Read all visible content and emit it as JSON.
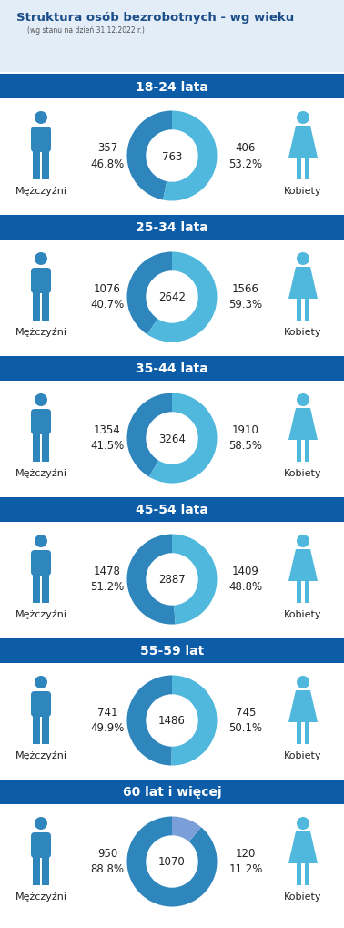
{
  "title": "Struktura osób bezrobotnych - wg wieku",
  "subtitle": "(wg stanu na dzień 31.12.2022 r.)",
  "chart_data": [
    {
      "type": "pie",
      "title": "18-24 lata",
      "total": 763,
      "categories": [
        "Mężczyźni",
        "Kobiety"
      ],
      "values": [
        357,
        406
      ],
      "percent_labels": [
        "46.8%",
        "53.2%"
      ],
      "colors": [
        "#2f86bd",
        "#4fb8dc"
      ]
    },
    {
      "type": "pie",
      "title": "25-34 lata",
      "total": 2642,
      "categories": [
        "Mężczyźni",
        "Kobiety"
      ],
      "values": [
        1076,
        1566
      ],
      "percent_labels": [
        "40.7%",
        "59.3%"
      ],
      "colors": [
        "#2f86bd",
        "#4fb8dc"
      ]
    },
    {
      "type": "pie",
      "title": "35-44 lata",
      "total": 3264,
      "categories": [
        "Mężczyźni",
        "Kobiety"
      ],
      "values": [
        1354,
        1910
      ],
      "percent_labels": [
        "41.5%",
        "58.5%"
      ],
      "colors": [
        "#2f86bd",
        "#4fb8dc"
      ]
    },
    {
      "type": "pie",
      "title": "45-54 lata",
      "total": 2887,
      "categories": [
        "Mężczyźni",
        "Kobiety"
      ],
      "values": [
        1478,
        1409
      ],
      "percent_labels": [
        "51.2%",
        "48.8%"
      ],
      "colors": [
        "#2f86bd",
        "#4fb8dc"
      ]
    },
    {
      "type": "pie",
      "title": "55-59 lat",
      "total": 1486,
      "categories": [
        "Mężczyźni",
        "Kobiety"
      ],
      "values": [
        741,
        745
      ],
      "percent_labels": [
        "49.9%",
        "50.1%"
      ],
      "colors": [
        "#2f86bd",
        "#4fb8dc"
      ]
    },
    {
      "type": "pie",
      "title": "60 lat i więcej",
      "total": 1070,
      "categories": [
        "Mężczyźni",
        "Kobiety"
      ],
      "values": [
        950,
        120
      ],
      "percent_labels": [
        "88.8%",
        "11.2%"
      ],
      "colors": [
        "#2f86bd",
        "#7a9fd8"
      ]
    }
  ]
}
